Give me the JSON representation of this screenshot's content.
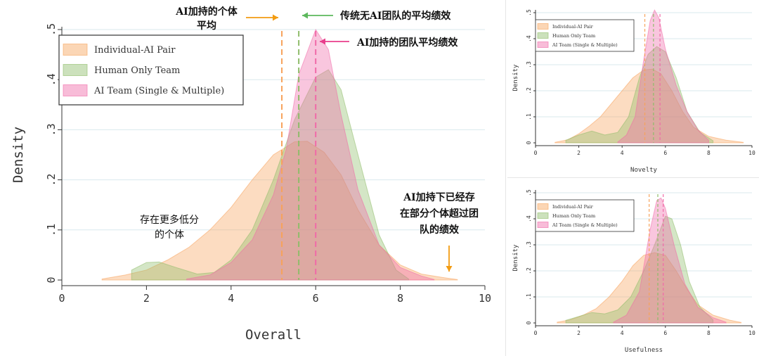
{
  "colors": {
    "individual": "#f7a35c",
    "human": "#8fbc6a",
    "ai": "#f06aa8",
    "grid": "#d9e9ee",
    "arrow_orange": "#f39c12",
    "arrow_green": "#5cb85c",
    "arrow_pink": "#e83e8c"
  },
  "chart_data": [
    {
      "id": "overall",
      "type": "area",
      "xlabel": "Overall",
      "ylabel": "Density",
      "xlim": [
        0,
        10
      ],
      "ylim": [
        0,
        0.5
      ],
      "xticks": [
        "0",
        "2",
        "4",
        "6",
        "8",
        "10"
      ],
      "xtick_values": [
        0,
        2,
        4,
        6,
        8,
        10
      ],
      "yticks": [
        "0",
        ".1",
        ".2",
        ".3",
        ".4",
        ".5"
      ],
      "ytick_values": [
        0,
        0.1,
        0.2,
        0.3,
        0.4,
        0.5
      ],
      "grid": true,
      "legend_position": "top-left",
      "series": [
        {
          "name": "Individual-AI Pair",
          "color": "#f7a35c",
          "mean": 5.2,
          "points": [
            [
              0.95,
              0.002
            ],
            [
              1.5,
              0.01
            ],
            [
              2.0,
              0.02
            ],
            [
              2.5,
              0.04
            ],
            [
              3.0,
              0.065
            ],
            [
              3.5,
              0.1
            ],
            [
              4.0,
              0.145
            ],
            [
              4.5,
              0.2
            ],
            [
              5.0,
              0.25
            ],
            [
              5.5,
              0.276
            ],
            [
              5.8,
              0.277
            ],
            [
              6.2,
              0.255
            ],
            [
              6.6,
              0.21
            ],
            [
              7.0,
              0.14
            ],
            [
              7.5,
              0.07
            ],
            [
              8.0,
              0.03
            ],
            [
              8.5,
              0.012
            ],
            [
              9.0,
              0.005
            ],
            [
              9.35,
              0.001
            ]
          ]
        },
        {
          "name": "Human Only Team",
          "color": "#8fbc6a",
          "mean": 5.6,
          "points": [
            [
              1.65,
              0.02
            ],
            [
              2.0,
              0.035
            ],
            [
              2.3,
              0.036
            ],
            [
              2.7,
              0.025
            ],
            [
              3.2,
              0.012
            ],
            [
              3.6,
              0.015
            ],
            [
              4.0,
              0.04
            ],
            [
              4.5,
              0.1
            ],
            [
              5.0,
              0.2
            ],
            [
              5.5,
              0.32
            ],
            [
              6.0,
              0.405
            ],
            [
              6.3,
              0.42
            ],
            [
              6.6,
              0.38
            ],
            [
              7.0,
              0.25
            ],
            [
              7.5,
              0.09
            ],
            [
              7.9,
              0.02
            ],
            [
              8.2,
              0.002
            ]
          ]
        },
        {
          "name": "AI Team (Single & Multiple)",
          "color": "#f06aa8",
          "mean": 6.0,
          "points": [
            [
              2.95,
              0.002
            ],
            [
              3.5,
              0.01
            ],
            [
              4.0,
              0.035
            ],
            [
              4.5,
              0.08
            ],
            [
              5.0,
              0.17
            ],
            [
              5.3,
              0.26
            ],
            [
              5.6,
              0.41
            ],
            [
              6.0,
              0.5
            ],
            [
              6.3,
              0.46
            ],
            [
              6.6,
              0.33
            ],
            [
              7.0,
              0.18
            ],
            [
              7.5,
              0.07
            ],
            [
              8.0,
              0.025
            ],
            [
              8.5,
              0.008
            ],
            [
              8.8,
              0.001
            ]
          ]
        }
      ],
      "annotations": [
        {
          "text": "AI加持的个体",
          "line2": "平均"
        },
        {
          "text": "传统无AI团队的平均绩效"
        },
        {
          "text": "AI加持的团队平均绩效"
        },
        {
          "text": "存在更多低分",
          "line2": "的个体"
        },
        {
          "text": "AI加持下已经存",
          "line2": "在部分个体超过团",
          "line3": "队的绩效"
        }
      ]
    },
    {
      "id": "novelty",
      "type": "area",
      "xlabel": "Novelty",
      "ylabel": "Density",
      "xlim": [
        0,
        10
      ],
      "ylim": [
        0,
        0.5
      ],
      "xticks": [
        "0",
        "2",
        "4",
        "6",
        "8",
        "10"
      ],
      "xtick_values": [
        0,
        2,
        4,
        6,
        8,
        10
      ],
      "yticks": [
        "0",
        ".1",
        ".2",
        ".3",
        ".4",
        ".5"
      ],
      "ytick_values": [
        0,
        0.1,
        0.2,
        0.3,
        0.4,
        0.5
      ],
      "grid": true,
      "legend_position": "top-left",
      "series": [
        {
          "name": "Individual-AI Pair",
          "color": "#f7a35c",
          "mean": 5.05,
          "points": [
            [
              0.9,
              0.002
            ],
            [
              1.5,
              0.012
            ],
            [
              2.0,
              0.035
            ],
            [
              2.5,
              0.065
            ],
            [
              3.0,
              0.1
            ],
            [
              3.5,
              0.15
            ],
            [
              4.0,
              0.2
            ],
            [
              4.5,
              0.25
            ],
            [
              5.0,
              0.28
            ],
            [
              5.4,
              0.283
            ],
            [
              5.8,
              0.265
            ],
            [
              6.3,
              0.2
            ],
            [
              6.8,
              0.12
            ],
            [
              7.3,
              0.06
            ],
            [
              8.0,
              0.025
            ],
            [
              8.8,
              0.01
            ],
            [
              9.6,
              0.002
            ]
          ]
        },
        {
          "name": "Human Only Team",
          "color": "#8fbc6a",
          "mean": 5.45,
          "points": [
            [
              1.4,
              0.01
            ],
            [
              2.0,
              0.03
            ],
            [
              2.6,
              0.045
            ],
            [
              3.2,
              0.03
            ],
            [
              3.8,
              0.04
            ],
            [
              4.3,
              0.1
            ],
            [
              4.8,
              0.25
            ],
            [
              5.2,
              0.34
            ],
            [
              5.6,
              0.37
            ],
            [
              6.0,
              0.35
            ],
            [
              6.5,
              0.25
            ],
            [
              7.0,
              0.12
            ],
            [
              7.6,
              0.04
            ],
            [
              8.2,
              0.008
            ]
          ]
        },
        {
          "name": "AI Team (Single & Multiple)",
          "color": "#f06aa8",
          "mean": 5.75,
          "points": [
            [
              3.8,
              0.003
            ],
            [
              4.2,
              0.03
            ],
            [
              4.6,
              0.1
            ],
            [
              5.0,
              0.32
            ],
            [
              5.3,
              0.47
            ],
            [
              5.5,
              0.51
            ],
            [
              5.7,
              0.48
            ],
            [
              6.0,
              0.36
            ],
            [
              6.5,
              0.22
            ],
            [
              7.0,
              0.12
            ],
            [
              7.5,
              0.05
            ],
            [
              8.0,
              0.01
            ]
          ]
        }
      ]
    },
    {
      "id": "usefulness",
      "type": "area",
      "xlabel": "Usefulness",
      "ylabel": "Density",
      "xlim": [
        0,
        10
      ],
      "ylim": [
        0,
        0.5
      ],
      "xticks": [
        "0",
        "2",
        "4",
        "6",
        "8",
        "10"
      ],
      "xtick_values": [
        0,
        2,
        4,
        6,
        8,
        10
      ],
      "yticks": [
        "0",
        ".1",
        ".2",
        ".3",
        ".4",
        ".5"
      ],
      "ytick_values": [
        0,
        0.1,
        0.2,
        0.3,
        0.4,
        0.5
      ],
      "grid": true,
      "legend_position": "top-left",
      "series": [
        {
          "name": "Individual-AI Pair",
          "color": "#f7a35c",
          "mean": 5.25,
          "points": [
            [
              1.0,
              0.003
            ],
            [
              1.6,
              0.012
            ],
            [
              2.2,
              0.03
            ],
            [
              2.8,
              0.055
            ],
            [
              3.4,
              0.1
            ],
            [
              4.0,
              0.16
            ],
            [
              4.5,
              0.22
            ],
            [
              5.0,
              0.26
            ],
            [
              5.5,
              0.27
            ],
            [
              6.0,
              0.26
            ],
            [
              6.5,
              0.2
            ],
            [
              7.0,
              0.13
            ],
            [
              7.5,
              0.07
            ],
            [
              8.2,
              0.03
            ],
            [
              9.0,
              0.01
            ],
            [
              9.5,
              0.002
            ]
          ]
        },
        {
          "name": "Human Only Team",
          "color": "#8fbc6a",
          "mean": 5.65,
          "points": [
            [
              1.4,
              0.01
            ],
            [
              2.0,
              0.025
            ],
            [
              2.6,
              0.04
            ],
            [
              3.2,
              0.035
            ],
            [
              3.8,
              0.05
            ],
            [
              4.4,
              0.1
            ],
            [
              5.0,
              0.2
            ],
            [
              5.5,
              0.3
            ],
            [
              6.0,
              0.41
            ],
            [
              6.3,
              0.4
            ],
            [
              6.7,
              0.3
            ],
            [
              7.1,
              0.16
            ],
            [
              7.6,
              0.06
            ],
            [
              8.2,
              0.012
            ]
          ]
        },
        {
          "name": "AI Team (Single & Multiple)",
          "color": "#f06aa8",
          "mean": 5.9,
          "points": [
            [
              3.6,
              0.003
            ],
            [
              4.2,
              0.03
            ],
            [
              4.8,
              0.12
            ],
            [
              5.3,
              0.36
            ],
            [
              5.6,
              0.47
            ],
            [
              5.8,
              0.48
            ],
            [
              6.0,
              0.44
            ],
            [
              6.4,
              0.3
            ],
            [
              6.9,
              0.15
            ],
            [
              7.5,
              0.06
            ],
            [
              8.2,
              0.02
            ],
            [
              8.8,
              0.003
            ]
          ]
        }
      ]
    }
  ]
}
